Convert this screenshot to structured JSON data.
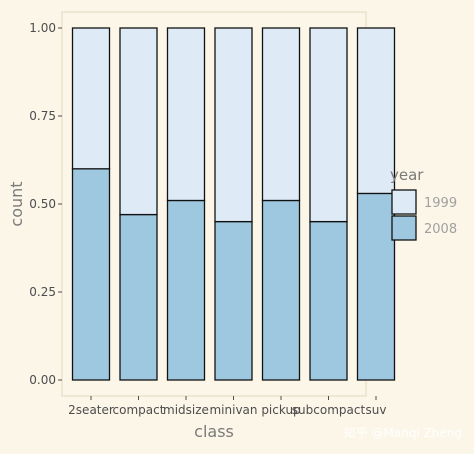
{
  "chart_data": {
    "type": "bar",
    "stacked": true,
    "position": "fill",
    "categories": [
      "2seater",
      "compact",
      "midsize",
      "minivan",
      "pickup",
      "subcompact",
      "suv"
    ],
    "series": [
      {
        "name": "2008",
        "values": [
          0.6,
          0.47,
          0.51,
          0.45,
          0.51,
          0.45,
          0.53
        ],
        "color": "#9ec8e0"
      },
      {
        "name": "1999",
        "values": [
          0.4,
          0.53,
          0.49,
          0.55,
          0.49,
          0.55,
          0.47
        ],
        "color": "#deebf7"
      }
    ],
    "yticks": [
      "0.00",
      "0.25",
      "0.50",
      "0.75",
      "1.00"
    ],
    "ylim": [
      0,
      1
    ],
    "xlabel": "class",
    "ylabel": "count",
    "grid": false,
    "legend": {
      "title": "year",
      "placement": "right",
      "entries": [
        {
          "label": "1999",
          "color": "#deebf7"
        },
        {
          "label": "2008",
          "color": "#9ec8e0"
        }
      ]
    },
    "panel_background": "#fbf6e8",
    "outline_color": "#111111"
  },
  "watermark": {
    "text": "知乎 @Manqi Zheng"
  }
}
